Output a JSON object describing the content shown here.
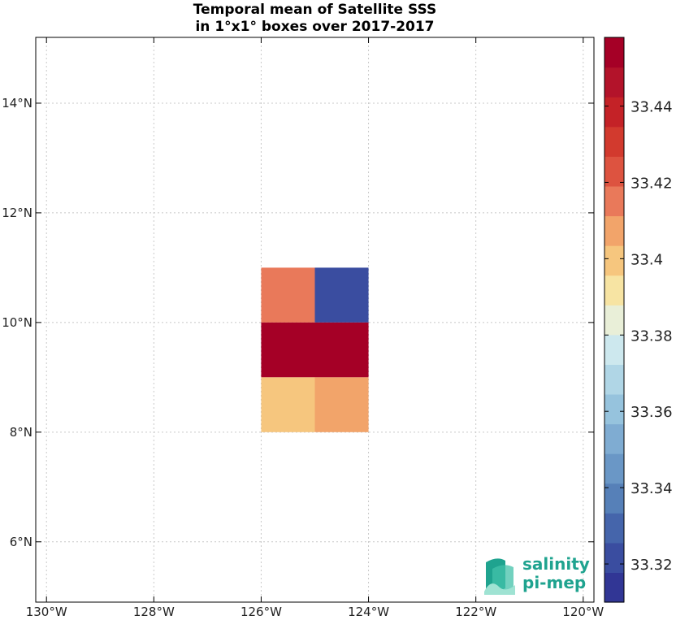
{
  "chart_data": {
    "type": "heatmap",
    "title_line1": "Temporal mean of Satellite SSS",
    "title_line2": "in 1°x1° boxes over 2017-2017",
    "xlim": [
      -130.2,
      -119.8
    ],
    "ylim": [
      4.9,
      15.2
    ],
    "x_ticks": [
      -130,
      -128,
      -126,
      -124,
      -122,
      -120
    ],
    "x_tick_labels": [
      "130°W",
      "128°W",
      "126°W",
      "124°W",
      "122°W",
      "120°W"
    ],
    "y_ticks": [
      6,
      8,
      10,
      12,
      14
    ],
    "y_tick_labels": [
      "6°N",
      "8°N",
      "10°N",
      "12°N",
      "14°N"
    ],
    "grid": true,
    "cells": [
      {
        "lon0": -126,
        "lon1": -125,
        "lat0": 10,
        "lat1": 11,
        "value": 33.414
      },
      {
        "lon0": -125,
        "lon1": -124,
        "lat0": 10,
        "lat1": 11,
        "value": 33.318
      },
      {
        "lon0": -126,
        "lon1": -125,
        "lat0": 9,
        "lat1": 10,
        "value": 33.452
      },
      {
        "lon0": -125,
        "lon1": -124,
        "lat0": 9,
        "lat1": 10,
        "value": 33.452
      },
      {
        "lon0": -126,
        "lon1": -125,
        "lat0": 8,
        "lat1": 9,
        "value": 33.402
      },
      {
        "lon0": -125,
        "lon1": -124,
        "lat0": 8,
        "lat1": 9,
        "value": 33.41
      }
    ],
    "colorbar": {
      "vmin": 33.31,
      "vmax": 33.458,
      "ticks": [
        33.32,
        33.34,
        33.36,
        33.38,
        33.4,
        33.42,
        33.44
      ],
      "tick_labels": [
        "33.32",
        "33.34",
        "33.36",
        "33.38",
        "33.4",
        "33.42",
        "33.44"
      ],
      "colors": [
        "#313695",
        "#3a4da0",
        "#4565ab",
        "#5680b8",
        "#6a97c6",
        "#7facd2",
        "#96c3dd",
        "#b0d6e6",
        "#cde8ee",
        "#e9efd8",
        "#f7e4a3",
        "#f6c67e",
        "#f2a46a",
        "#e9795a",
        "#dd5340",
        "#d23a2e",
        "#c42227",
        "#b3132a",
        "#a50026"
      ]
    }
  },
  "logo": {
    "line1": "salinity",
    "line2": "pi-mep"
  }
}
